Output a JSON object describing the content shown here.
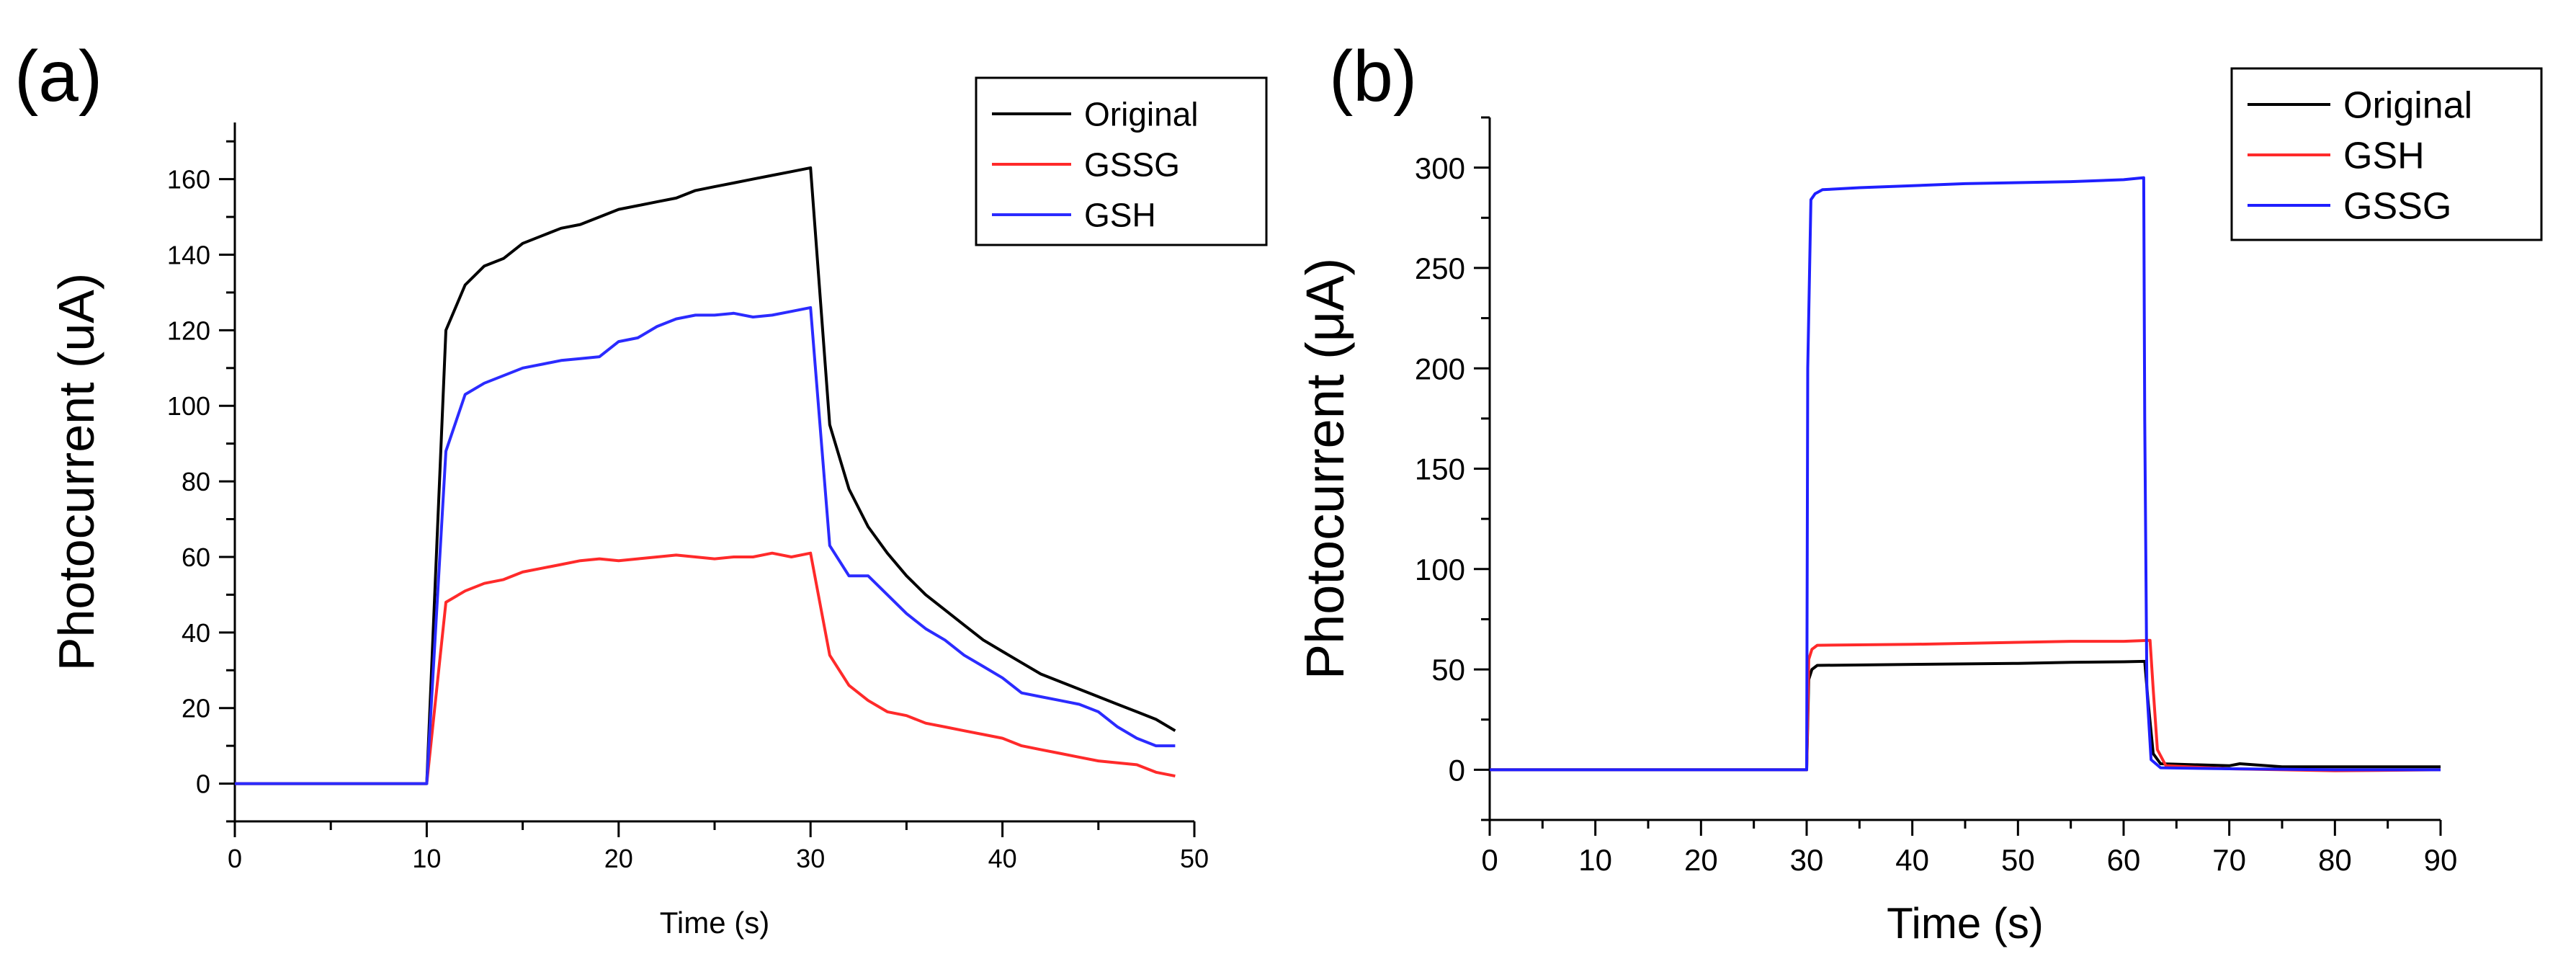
{
  "figure": {
    "panels": [
      "(a)",
      "(b)"
    ]
  },
  "colors": {
    "original_a": "#000000",
    "gssg_a": "#ff2a2a",
    "gsh_a": "#2b2bff",
    "original_b": "#000000",
    "gsh_b": "#ff2a2a",
    "gssg_b": "#1f1fff"
  },
  "chart_data": [
    {
      "panel": "(a)",
      "type": "line",
      "xlabel": "Time (s)",
      "ylabel": "Photocurrent (uA)",
      "xlim": [
        0,
        50
      ],
      "ylim": [
        -10,
        175
      ],
      "xticks": [
        0,
        10,
        20,
        30,
        40,
        50
      ],
      "yticks": [
        0,
        20,
        40,
        60,
        80,
        100,
        120,
        140,
        160
      ],
      "legend": "top-right",
      "series": [
        {
          "name": "Original",
          "color": "#000000",
          "x": [
            0,
            10,
            11,
            12,
            13,
            14,
            15,
            16,
            17,
            18,
            19,
            20,
            21,
            22,
            23,
            24,
            25,
            26,
            27,
            28,
            29,
            30,
            31,
            32,
            33,
            34,
            35,
            36,
            37,
            38,
            39,
            40,
            41,
            42,
            43,
            44,
            45,
            46,
            47,
            48,
            49
          ],
          "y": [
            0,
            0,
            120,
            132,
            137,
            139,
            143,
            145,
            147,
            148,
            150,
            152,
            153,
            154,
            155,
            157,
            158,
            159,
            160,
            161,
            162,
            163,
            95,
            78,
            68,
            61,
            55,
            50,
            46,
            42,
            38,
            35,
            32,
            29,
            27,
            25,
            23,
            21,
            19,
            17,
            14
          ]
        },
        {
          "name": "GSSG",
          "color": "#ff2a2a",
          "x": [
            0,
            10,
            11,
            12,
            13,
            14,
            15,
            16,
            17,
            18,
            19,
            20,
            21,
            22,
            23,
            24,
            25,
            26,
            27,
            28,
            29,
            30,
            31,
            32,
            33,
            34,
            35,
            36,
            37,
            38,
            39,
            40,
            41,
            42,
            43,
            44,
            45,
            46,
            47,
            48,
            49
          ],
          "y": [
            0,
            0,
            48,
            51,
            53,
            54,
            56,
            57,
            58,
            59,
            59.5,
            59,
            59.5,
            60,
            60.5,
            60,
            59.5,
            60,
            60,
            61,
            60,
            61,
            34,
            26,
            22,
            19,
            18,
            16,
            15,
            14,
            13,
            12,
            10,
            9,
            8,
            7,
            6,
            5.5,
            5,
            3,
            2
          ]
        },
        {
          "name": "GSH",
          "color": "#2b2bff",
          "x": [
            0,
            10,
            11,
            12,
            13,
            14,
            15,
            16,
            17,
            18,
            19,
            20,
            21,
            22,
            23,
            24,
            25,
            26,
            27,
            28,
            29,
            30,
            31,
            32,
            33,
            34,
            35,
            36,
            37,
            38,
            39,
            40,
            41,
            42,
            43,
            44,
            45,
            46,
            47,
            48,
            49
          ],
          "y": [
            0,
            0,
            88,
            103,
            106,
            108,
            110,
            111,
            112,
            112.5,
            113,
            117,
            118,
            121,
            123,
            124,
            124,
            124.5,
            123.5,
            124,
            125,
            126,
            63,
            55,
            55,
            50,
            45,
            41,
            38,
            34,
            31,
            28,
            24,
            23,
            22,
            21,
            19,
            15,
            12,
            10,
            10
          ]
        }
      ]
    },
    {
      "panel": "(b)",
      "type": "line",
      "xlabel": "Time (s)",
      "ylabel": "Photocurrent (μA)",
      "xlim": [
        0,
        90
      ],
      "ylim": [
        -25,
        325
      ],
      "xticks": [
        0,
        10,
        20,
        30,
        40,
        50,
        60,
        70,
        80,
        90
      ],
      "yticks": [
        0,
        50,
        100,
        150,
        200,
        250,
        300
      ],
      "legend": "top-right",
      "series": [
        {
          "name": "Original",
          "color": "#000000",
          "x": [
            0,
            30,
            30.2,
            30.5,
            31,
            40,
            50,
            55,
            60,
            62,
            62.3,
            62.8,
            63.5,
            70,
            71,
            75,
            80,
            90
          ],
          "y": [
            0,
            0,
            45,
            50,
            52,
            52.5,
            53,
            53.5,
            53.8,
            54,
            35,
            8,
            3,
            2,
            3,
            1.5,
            1.5,
            1.5
          ]
        },
        {
          "name": "GSH",
          "color": "#ff2a2a",
          "x": [
            0,
            30,
            30.2,
            30.5,
            31,
            40,
            50,
            55,
            60,
            62.5,
            62.8,
            63.2,
            64,
            70,
            80,
            90
          ],
          "y": [
            0,
            0,
            55,
            60,
            62,
            62.5,
            63.5,
            64,
            64,
            64.5,
            40,
            10,
            2,
            0.5,
            -0.5,
            0
          ]
        },
        {
          "name": "GSSG",
          "color": "#1f1fff",
          "x": [
            0,
            30,
            30.1,
            30.4,
            30.8,
            31.5,
            35,
            40,
            45,
            50,
            55,
            60,
            61.9,
            62,
            62.2,
            62.6,
            63.5,
            70,
            80,
            90
          ],
          "y": [
            0,
            0,
            200,
            284,
            287,
            289,
            290,
            291,
            292,
            292.5,
            293,
            294,
            295,
            175,
            40,
            5,
            1,
            0.5,
            0,
            0
          ]
        }
      ]
    }
  ]
}
